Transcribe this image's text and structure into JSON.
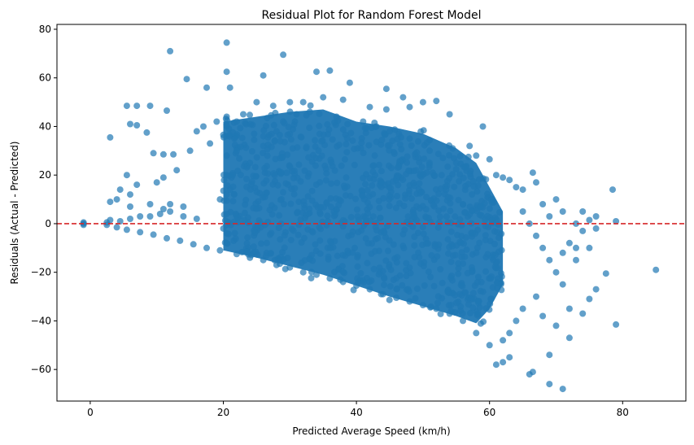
{
  "chart_data": {
    "type": "scatter",
    "title": "Residual Plot for Random Forest Model",
    "xlabel": "Predicted Average Speed (km/h)",
    "ylabel": "Residuals (Actual - Predicted)",
    "xlim": [
      -5,
      89.5
    ],
    "ylim": [
      -73,
      82
    ],
    "xticks": [
      0,
      20,
      40,
      60,
      80
    ],
    "yticks": [
      -60,
      -40,
      -20,
      0,
      20,
      40,
      60,
      80
    ],
    "xtick_labels": [
      "0",
      "20",
      "40",
      "60",
      "80"
    ],
    "ytick_labels": [
      "−60",
      "−40",
      "−20",
      "0",
      "20",
      "40",
      "60",
      "80"
    ],
    "reference_line": {
      "y": 0,
      "color": "#d62728",
      "style": "dashed"
    },
    "point_color": "#1f77b4",
    "point_alpha": 0.7,
    "grid": false,
    "points": [
      [
        -1,
        0
      ],
      [
        -1,
        0.5
      ],
      [
        -1,
        -0.5
      ],
      [
        12,
        71
      ],
      [
        20.5,
        74.5
      ],
      [
        29,
        69.5
      ],
      [
        20.5,
        62.5
      ],
      [
        34,
        62.5
      ],
      [
        36,
        63
      ],
      [
        26,
        61
      ],
      [
        14.5,
        59.5
      ],
      [
        17.5,
        56
      ],
      [
        21,
        56
      ],
      [
        44.5,
        55.5
      ],
      [
        39,
        58
      ],
      [
        11.5,
        46.5
      ],
      [
        5.5,
        48.5
      ],
      [
        7,
        48.5
      ],
      [
        9,
        48.5
      ],
      [
        3,
        35.5
      ],
      [
        6,
        41
      ],
      [
        7,
        40.5
      ],
      [
        8.5,
        37.5
      ],
      [
        9.5,
        29
      ],
      [
        11,
        28.5
      ],
      [
        12.5,
        28.5
      ],
      [
        15,
        30
      ],
      [
        18,
        33
      ],
      [
        5.5,
        20
      ],
      [
        7,
        16
      ],
      [
        10,
        17
      ],
      [
        11,
        19
      ],
      [
        13,
        22
      ],
      [
        4.5,
        14
      ],
      [
        6,
        12
      ],
      [
        3,
        9
      ],
      [
        4,
        10
      ],
      [
        6,
        7
      ],
      [
        9,
        8
      ],
      [
        11,
        6
      ],
      [
        12,
        8
      ],
      [
        14,
        7
      ],
      [
        2.5,
        0.5
      ],
      [
        3,
        1.5
      ],
      [
        4.5,
        1
      ],
      [
        6,
        2
      ],
      [
        7.5,
        3
      ],
      [
        9,
        3
      ],
      [
        10.5,
        4
      ],
      [
        12,
        5
      ],
      [
        14,
        3
      ],
      [
        16,
        2
      ],
      [
        2.5,
        -0.5
      ],
      [
        4,
        -1.5
      ],
      [
        5.5,
        -2.5
      ],
      [
        7.5,
        -3.5
      ],
      [
        9.5,
        -4.5
      ],
      [
        11.5,
        -6
      ],
      [
        13.5,
        -7
      ],
      [
        15.5,
        -8.5
      ],
      [
        17.5,
        -10
      ],
      [
        19.5,
        -11
      ],
      [
        22,
        -12.5
      ],
      [
        24,
        -14
      ],
      [
        26,
        -15
      ],
      [
        28,
        -17
      ],
      [
        30,
        -18
      ],
      [
        32,
        -20
      ],
      [
        34,
        -21
      ],
      [
        36,
        -22.5
      ],
      [
        38,
        -24
      ],
      [
        40,
        -25.5
      ],
      [
        42,
        -27
      ],
      [
        44,
        -29
      ],
      [
        46,
        -30.5
      ],
      [
        48,
        -32
      ],
      [
        50,
        -33.5
      ],
      [
        52,
        -35
      ],
      [
        54,
        -37
      ],
      [
        56,
        -40
      ],
      [
        58,
        -45
      ],
      [
        60,
        -50
      ],
      [
        61,
        -58
      ],
      [
        62,
        -57
      ],
      [
        63,
        -55
      ],
      [
        66,
        -62
      ],
      [
        66.5,
        -61
      ],
      [
        69,
        -66
      ],
      [
        71,
        -68
      ],
      [
        69,
        -54
      ],
      [
        72,
        -47
      ],
      [
        74,
        -37
      ],
      [
        75,
        -31
      ],
      [
        76,
        -27
      ],
      [
        77.5,
        -20.5
      ],
      [
        79,
        -41.5
      ],
      [
        85,
        -19
      ],
      [
        78.5,
        14
      ],
      [
        79,
        1
      ],
      [
        76,
        3
      ],
      [
        75,
        1.5
      ],
      [
        74,
        -3
      ],
      [
        73,
        -10
      ],
      [
        72,
        -8
      ],
      [
        70,
        10
      ],
      [
        68,
        8
      ],
      [
        67,
        17
      ],
      [
        66.5,
        21
      ],
      [
        65,
        14
      ],
      [
        63,
        18
      ],
      [
        60,
        26.5
      ],
      [
        59,
        40
      ],
      [
        57,
        32
      ],
      [
        58,
        28
      ],
      [
        61,
        20
      ],
      [
        62,
        19
      ],
      [
        64,
        15
      ],
      [
        54,
        45
      ],
      [
        52,
        50.5
      ],
      [
        50,
        50
      ],
      [
        47,
        52
      ],
      [
        48,
        48
      ],
      [
        44.5,
        47
      ],
      [
        42,
        48
      ],
      [
        38,
        51
      ],
      [
        35,
        52
      ],
      [
        32,
        50
      ],
      [
        30,
        50
      ],
      [
        27.5,
        48.5
      ],
      [
        25,
        50
      ],
      [
        23,
        45
      ],
      [
        22,
        42
      ],
      [
        19,
        42
      ],
      [
        17,
        40
      ],
      [
        16,
        38
      ],
      [
        20.5,
        12
      ],
      [
        20.5,
        4
      ],
      [
        20.5,
        -4
      ],
      [
        20.5,
        -8
      ],
      [
        20.5,
        20
      ],
      [
        20.5,
        28
      ],
      [
        20.5,
        36
      ],
      [
        20.5,
        44
      ],
      [
        19.5,
        10
      ],
      [
        20,
        -2
      ],
      [
        21,
        14
      ],
      [
        22,
        30
      ],
      [
        24,
        25
      ],
      [
        26,
        32
      ],
      [
        28,
        38
      ],
      [
        29,
        42
      ],
      [
        31,
        45
      ],
      [
        33,
        46
      ],
      [
        37,
        44
      ],
      [
        41,
        42
      ],
      [
        43,
        40
      ],
      [
        45,
        38
      ],
      [
        48,
        35
      ],
      [
        51,
        30
      ],
      [
        53,
        27
      ],
      [
        55,
        25
      ],
      [
        65,
        5
      ],
      [
        66,
        0
      ],
      [
        67,
        -5
      ],
      [
        68,
        -10
      ],
      [
        69,
        -15
      ],
      [
        70,
        -20
      ],
      [
        71,
        -25
      ],
      [
        67,
        -30
      ],
      [
        65,
        -35
      ],
      [
        64,
        -40
      ],
      [
        63,
        -45
      ],
      [
        62,
        -48
      ],
      [
        70,
        -42
      ],
      [
        68,
        -38
      ],
      [
        72,
        -35
      ],
      [
        73,
        0
      ],
      [
        71,
        5
      ],
      [
        69,
        3
      ],
      [
        74,
        5
      ],
      [
        76,
        -2
      ],
      [
        75,
        -10
      ],
      [
        73,
        -15
      ],
      [
        71,
        -12
      ]
    ],
    "dense_region": {
      "description": "",
      "x_range": [
        20,
        60
      ],
      "upper_residual_by_x": [
        [
          20,
          42
        ],
        [
          25,
          44
        ],
        [
          30,
          46
        ],
        [
          35,
          47
        ],
        [
          40,
          42
        ],
        [
          45,
          40
        ],
        [
          50,
          37
        ],
        [
          55,
          31
        ],
        [
          58,
          25
        ],
        [
          60,
          15
        ],
        [
          62,
          5
        ]
      ],
      "lower_residual_by_x": [
        [
          20,
          -11
        ],
        [
          25,
          -14
        ],
        [
          30,
          -17.5
        ],
        [
          35,
          -21
        ],
        [
          40,
          -25.5
        ],
        [
          45,
          -30
        ],
        [
          50,
          -34
        ],
        [
          55,
          -38
        ],
        [
          58,
          -41
        ],
        [
          60,
          -35
        ],
        [
          62,
          -25
        ]
      ]
    }
  }
}
